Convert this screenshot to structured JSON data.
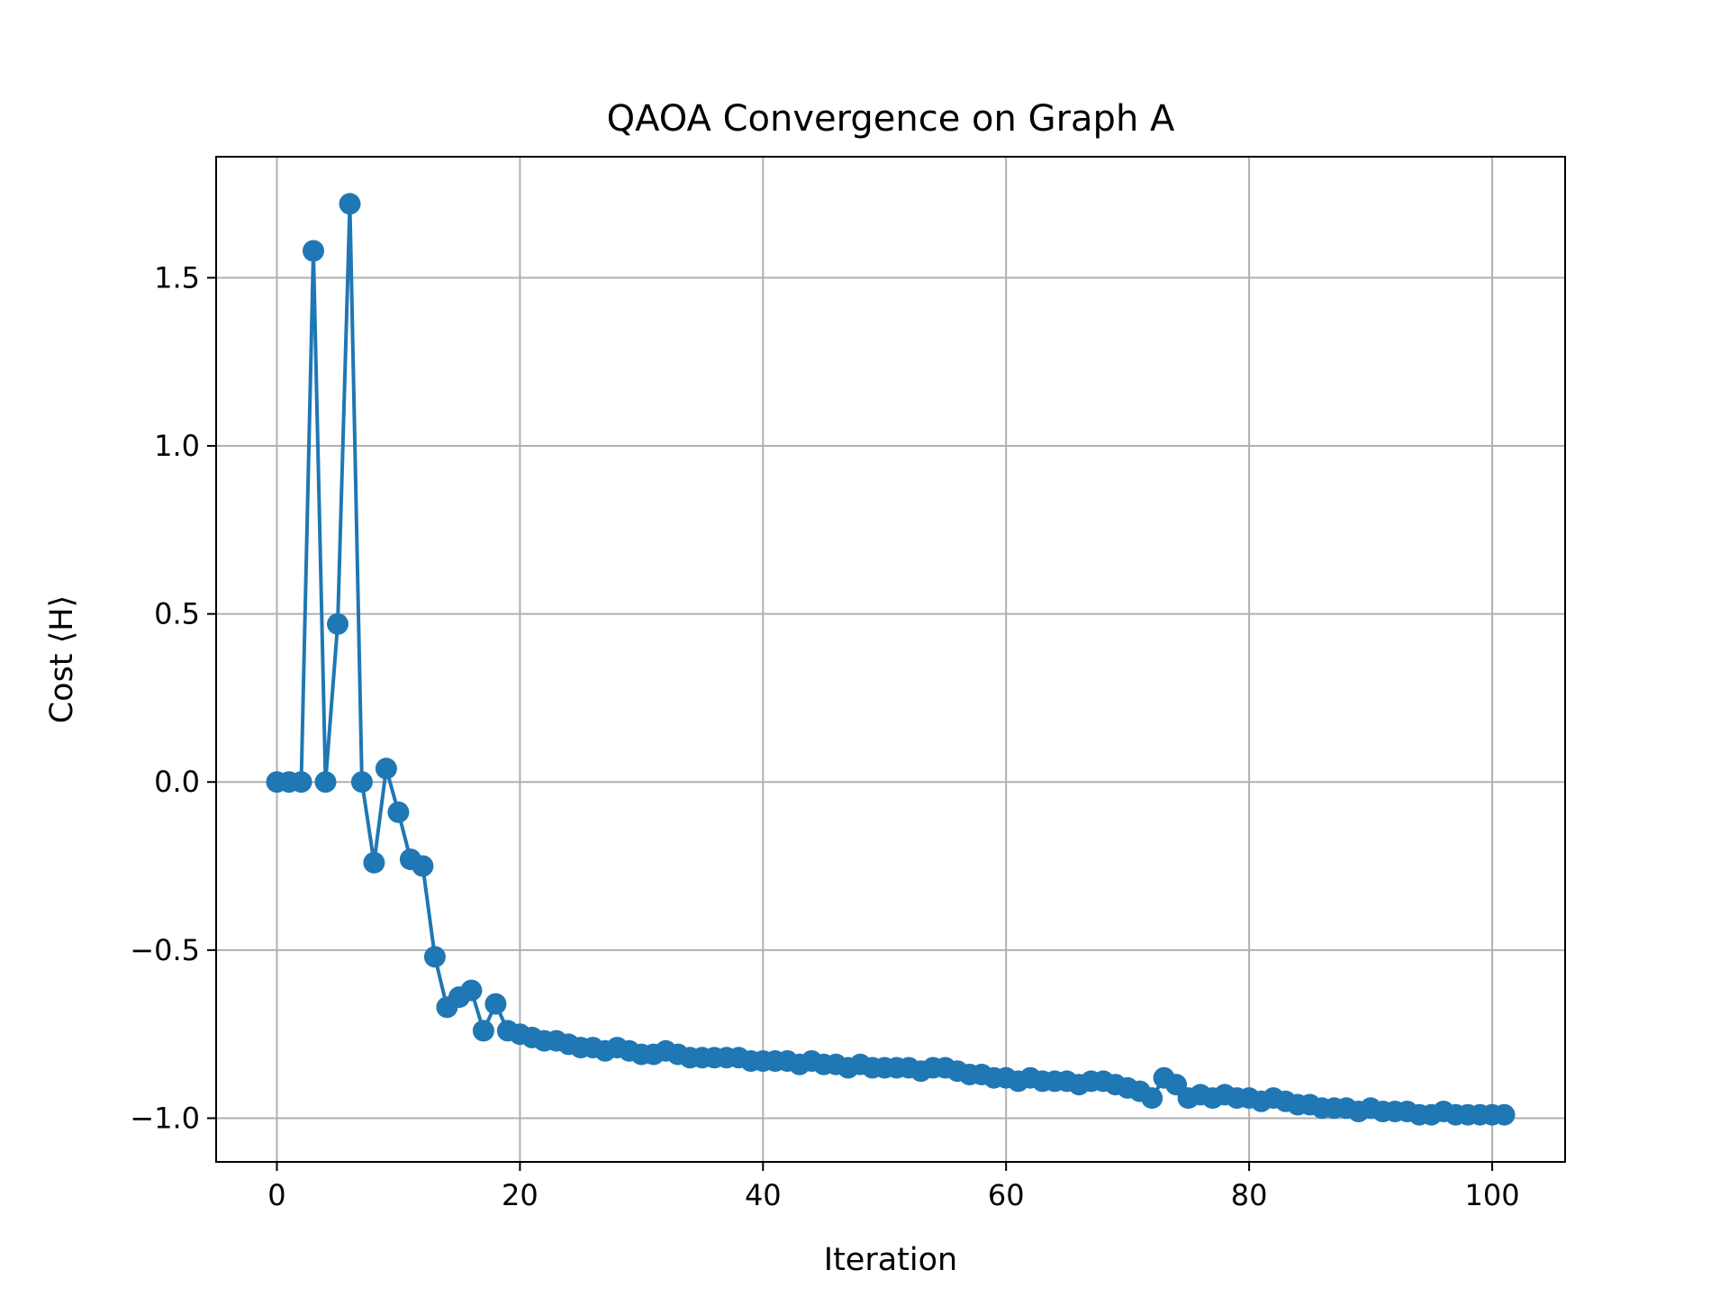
{
  "chart_data": {
    "type": "line",
    "title": "QAOA Convergence on Graph A",
    "xlabel": "Iteration",
    "ylabel": "Cost ⟨H⟩",
    "xlim": [
      -5,
      106
    ],
    "ylim": [
      -1.13,
      1.86
    ],
    "xticks": [
      0,
      20,
      40,
      60,
      80,
      100
    ],
    "xtick_labels": [
      "0",
      "20",
      "40",
      "60",
      "80",
      "100"
    ],
    "yticks": [
      -1.0,
      -0.5,
      0.0,
      0.5,
      1.0,
      1.5
    ],
    "ytick_labels": [
      "−1.0",
      "−0.5",
      "0.0",
      "0.5",
      "1.0",
      "1.5"
    ],
    "grid": true,
    "marker": "circle",
    "color": "#1f77b4",
    "series": [
      {
        "x": [
          0,
          1,
          2,
          3,
          4,
          5,
          6,
          7,
          8,
          9,
          10,
          11,
          12,
          13,
          14,
          15,
          16,
          17,
          18,
          19,
          20,
          21,
          22,
          23,
          24,
          25,
          26,
          27,
          28,
          29,
          30,
          31,
          32,
          33,
          34,
          35,
          36,
          37,
          38,
          39,
          40,
          41,
          42,
          43,
          44,
          45,
          46,
          47,
          48,
          49,
          50,
          51,
          52,
          53,
          54,
          55,
          56,
          57,
          58,
          59,
          60,
          61,
          62,
          63,
          64,
          65,
          66,
          67,
          68,
          69,
          70,
          71,
          72,
          73,
          74,
          75,
          76,
          77,
          78,
          79,
          80,
          81,
          82,
          83,
          84,
          85,
          86,
          87,
          88,
          89,
          90,
          91,
          92,
          93,
          94,
          95,
          96,
          97,
          98,
          99,
          100,
          101
        ],
        "y": [
          0.0,
          0.0,
          0.0,
          1.58,
          0.0,
          0.47,
          1.72,
          0.0,
          -0.24,
          0.04,
          -0.09,
          -0.23,
          -0.25,
          -0.52,
          -0.67,
          -0.64,
          -0.62,
          -0.74,
          -0.66,
          -0.74,
          -0.75,
          -0.76,
          -0.77,
          -0.77,
          -0.78,
          -0.79,
          -0.79,
          -0.8,
          -0.79,
          -0.8,
          -0.81,
          -0.81,
          -0.8,
          -0.81,
          -0.82,
          -0.82,
          -0.82,
          -0.82,
          -0.82,
          -0.83,
          -0.83,
          -0.83,
          -0.83,
          -0.84,
          -0.83,
          -0.84,
          -0.84,
          -0.85,
          -0.84,
          -0.85,
          -0.85,
          -0.85,
          -0.85,
          -0.86,
          -0.85,
          -0.85,
          -0.86,
          -0.87,
          -0.87,
          -0.88,
          -0.88,
          -0.89,
          -0.88,
          -0.89,
          -0.89,
          -0.89,
          -0.9,
          -0.89,
          -0.89,
          -0.9,
          -0.91,
          -0.92,
          -0.94,
          -0.88,
          -0.9,
          -0.94,
          -0.93,
          -0.94,
          -0.93,
          -0.94,
          -0.94,
          -0.95,
          -0.94,
          -0.95,
          -0.96,
          -0.96,
          -0.97,
          -0.97,
          -0.97,
          -0.98,
          -0.97,
          -0.98,
          -0.98,
          -0.98,
          -0.99,
          -0.99,
          -0.98,
          -0.99,
          -0.99,
          -0.99,
          -0.99,
          -0.99
        ]
      }
    ]
  }
}
